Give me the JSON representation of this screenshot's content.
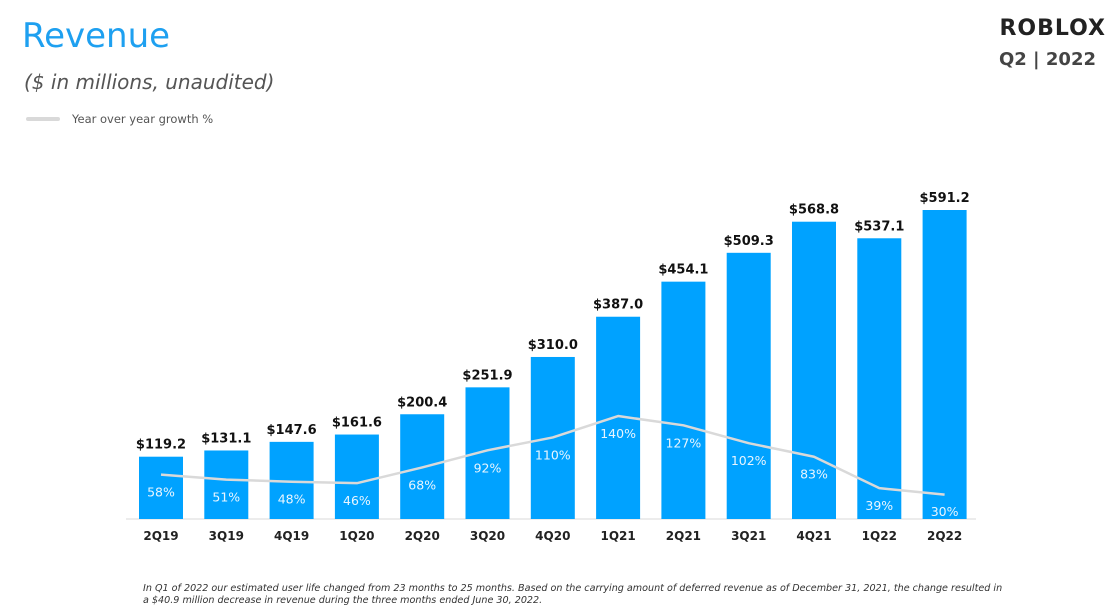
{
  "header": {
    "title": "Revenue",
    "subtitle": "($ in millions,  unaudited)",
    "legend_label": "Year over year growth %"
  },
  "brand": {
    "logo": "ROBLOX",
    "period": "Q2 | 2022"
  },
  "colors": {
    "bar": "#00a2ff",
    "growth_line": "#d9d9d9",
    "title": "#1ea0f0"
  },
  "chart_data": {
    "type": "bar",
    "categories": [
      "2Q19",
      "3Q19",
      "4Q19",
      "1Q20",
      "2Q20",
      "3Q20",
      "4Q20",
      "1Q21",
      "2Q21",
      "3Q21",
      "4Q21",
      "1Q22",
      "2Q22"
    ],
    "series": [
      {
        "values": [
          119.2,
          131.1,
          147.6,
          161.6,
          200.4,
          251.9,
          310.0,
          387.0,
          454.1,
          509.3,
          568.8,
          537.1,
          591.2
        ],
        "labels": [
          "$119.2",
          "$131.1",
          "$147.6",
          "$161.6",
          "$200.4",
          "$251.9",
          "$310.0",
          "$387.0",
          "$454.1",
          "$509.3",
          "$568.8",
          "$537.1",
          "$591.2"
        ]
      },
      {
        "name": "Year over year growth %",
        "type": "line",
        "values": [
          58,
          51,
          48,
          46,
          68,
          92,
          110,
          140,
          127,
          102,
          83,
          39,
          30
        ],
        "labels": [
          "58%",
          "51%",
          "48%",
          "46%",
          "68%",
          "92%",
          "110%",
          "140%",
          "127%",
          "102%",
          "83%",
          "39%",
          "30%"
        ]
      }
    ],
    "ylim": [
      0,
      600
    ],
    "grid": false,
    "legend_position": "top-left"
  },
  "footnote": "In Q1 of 2022 our estimated user life changed from 23 months to 25 months. Based on the carrying amount of deferred revenue as of December 31, 2021, the change resulted in a $40.9 million decrease in revenue during the three months ended June 30, 2022."
}
